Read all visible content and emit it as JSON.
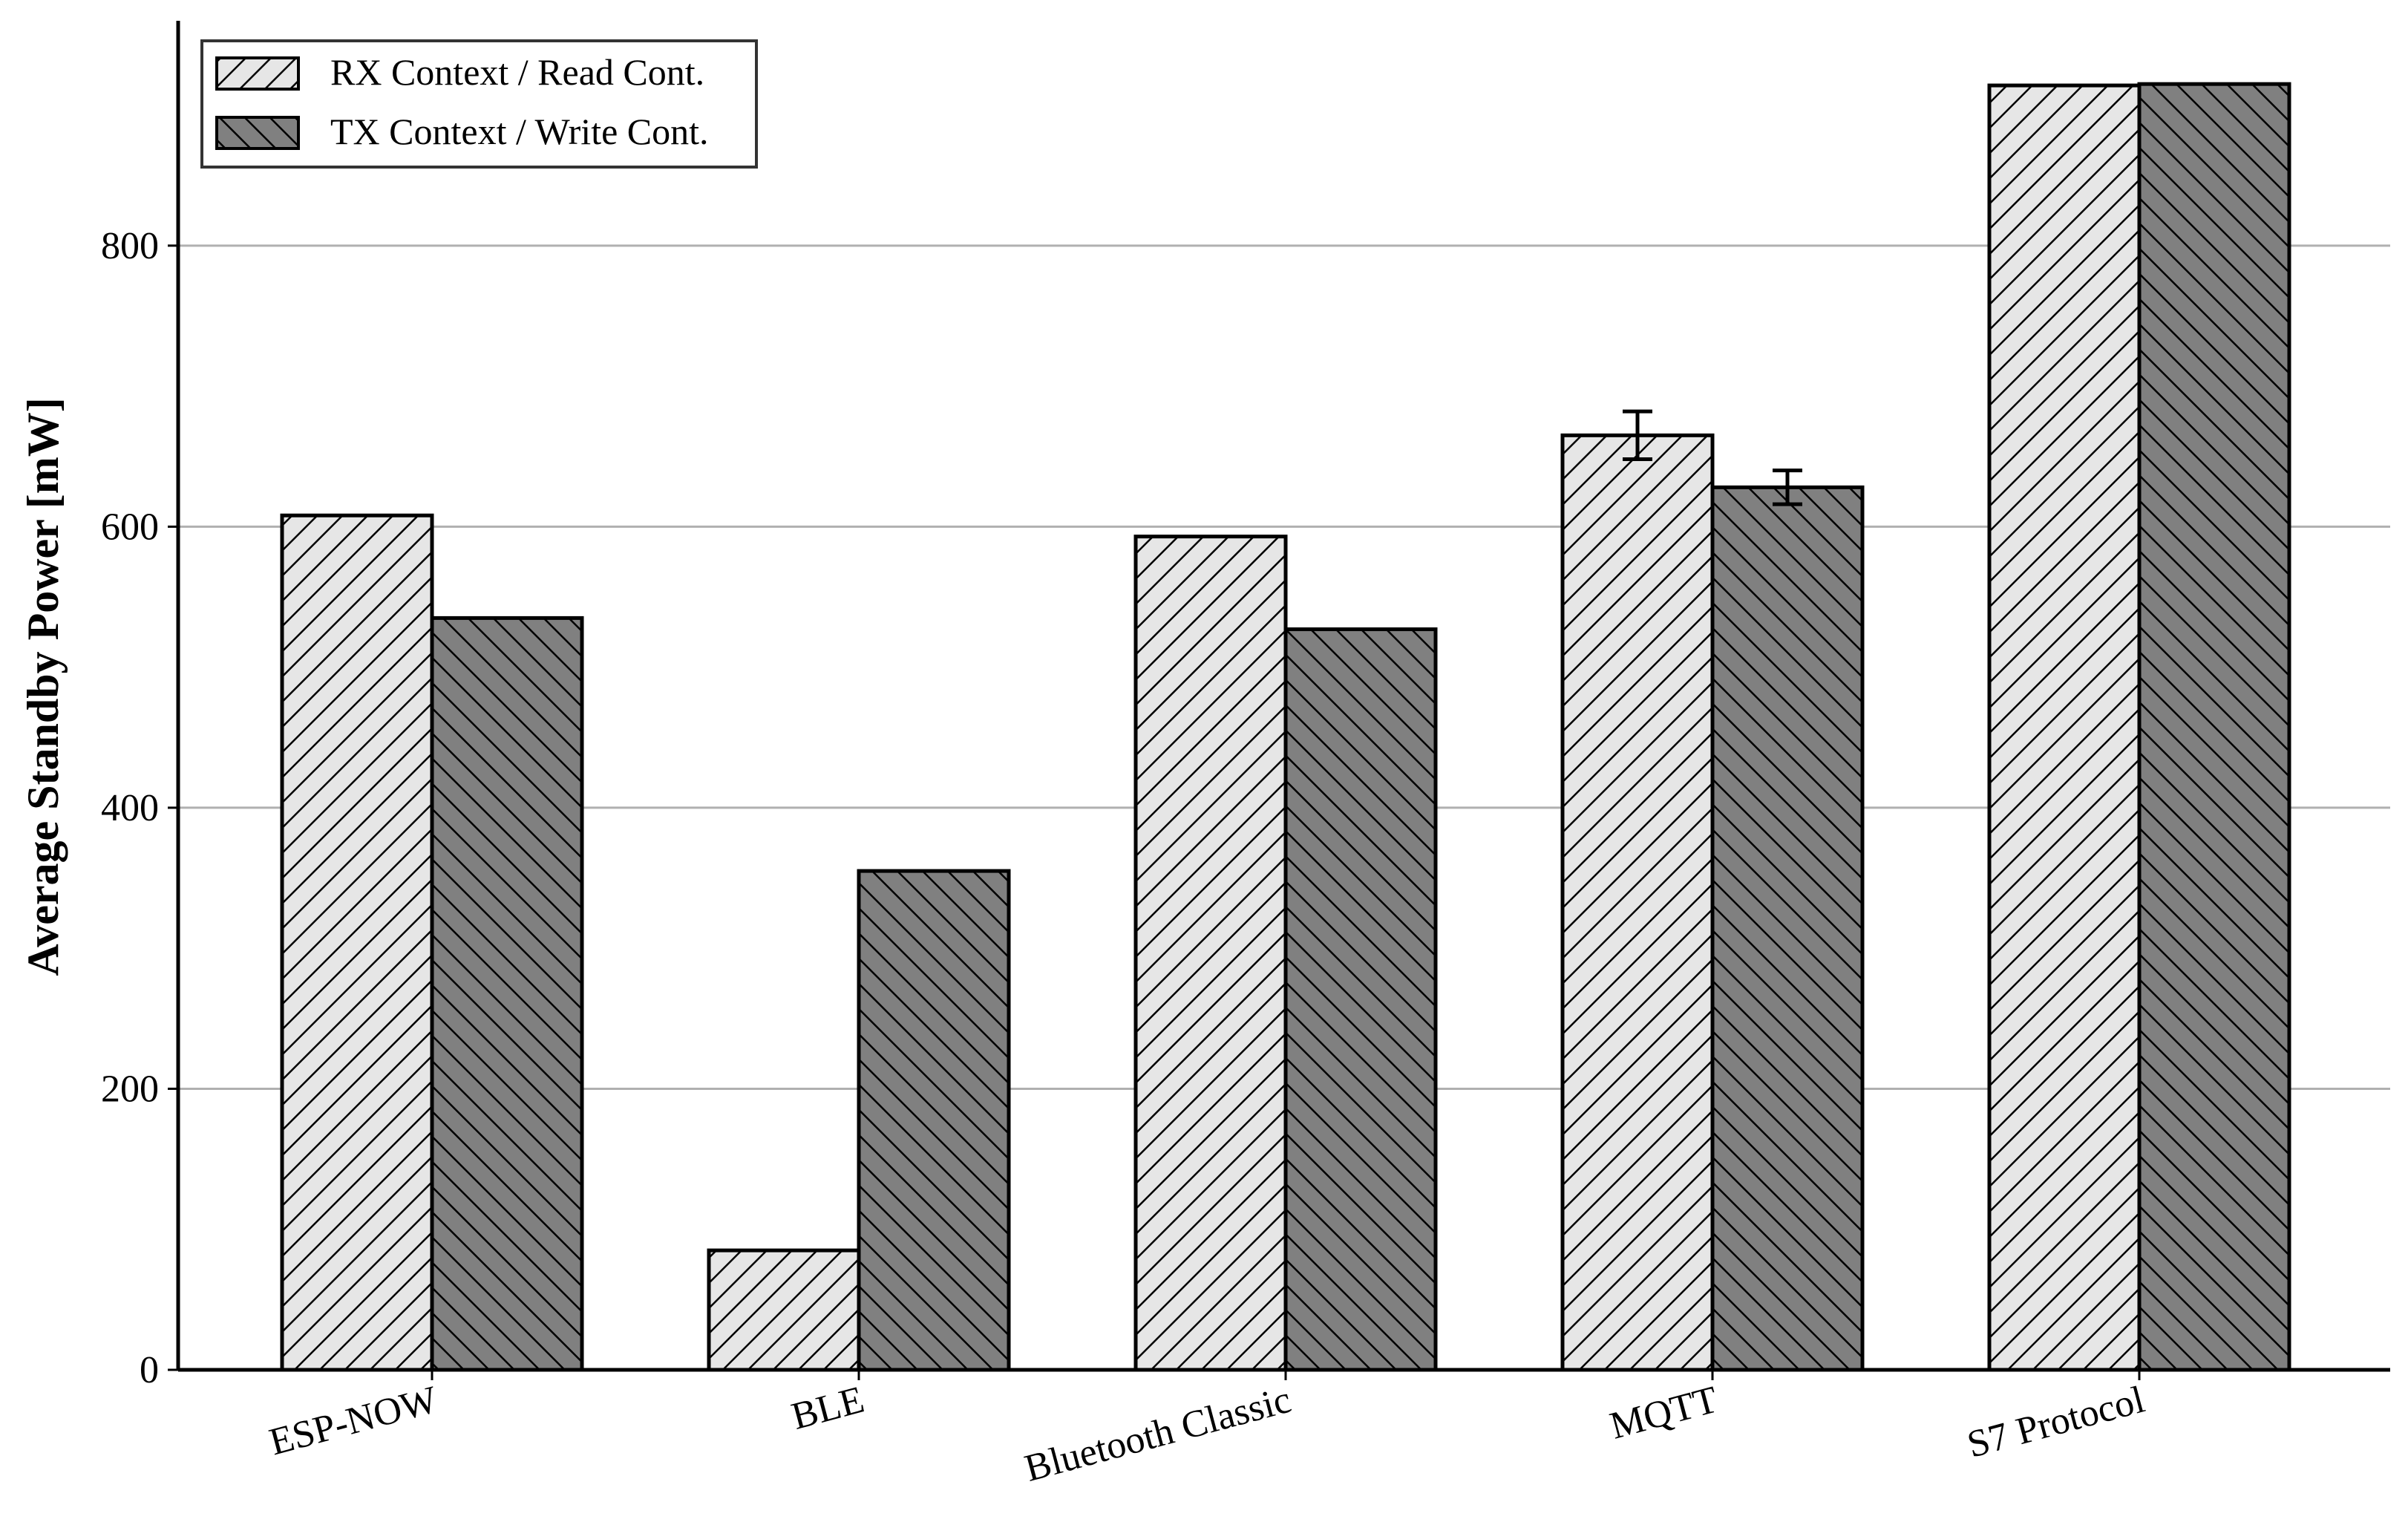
{
  "chart_data": {
    "type": "bar",
    "title": "",
    "xlabel": "",
    "ylabel": "Average Standby Power [mW]",
    "ylim": [
      0,
      960
    ],
    "yticks": [
      0,
      200,
      400,
      600,
      800
    ],
    "grid": "horizontal",
    "legend_position": "top-left",
    "categories": [
      "ESP-NOW",
      "BLE",
      "Bluetooth Classic",
      "MQTT",
      "S7 Protocol"
    ],
    "series": [
      {
        "name": "RX Context / Read Cont.",
        "color": "#e6e6e6",
        "hatch": "forward-diagonal",
        "values": [
          608,
          85,
          593,
          665,
          914
        ],
        "errors": [
          0,
          0,
          0,
          17,
          0
        ]
      },
      {
        "name": "TX Context / Write Cont.",
        "color": "#808080",
        "hatch": "backward-diagonal",
        "values": [
          535,
          355,
          527,
          628,
          915
        ],
        "errors": [
          0,
          0,
          0,
          12,
          0
        ]
      }
    ]
  }
}
